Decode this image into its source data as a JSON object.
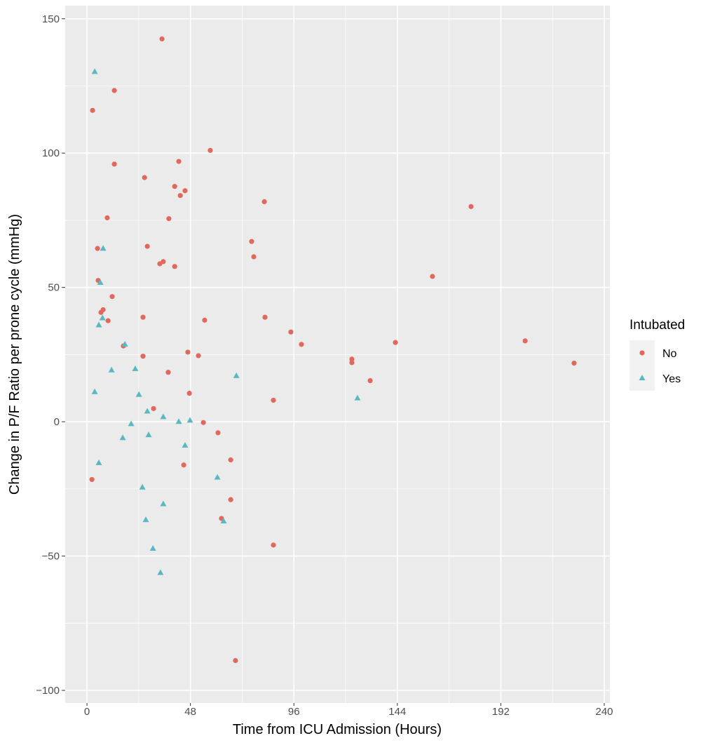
{
  "chart_data": {
    "type": "scatter",
    "title": "",
    "xlabel": "Time from ICU Admission (Hours)",
    "ylabel": "Change in P/F Ratio per prone cycle (mmHg)",
    "xlim": [
      -10.1,
      242.6
    ],
    "ylim": [
      -104.7,
      154.9
    ],
    "xticks": [
      0,
      48,
      96,
      144,
      192,
      240
    ],
    "yticks": [
      -100,
      -50,
      0,
      50,
      100,
      150
    ],
    "xminor": [
      24,
      72,
      120,
      168,
      216
    ],
    "yminor": [
      -75,
      -25,
      25,
      75,
      125
    ],
    "grid": true,
    "legend": {
      "title": "Intubated",
      "placement": "right"
    },
    "series": [
      {
        "name": "No",
        "color": "#E0695E",
        "marker": "circle",
        "points": [
          [
            34.8,
            142.5
          ],
          [
            12.7,
            123.3
          ],
          [
            2.6,
            115.9
          ],
          [
            12.7,
            95.9
          ],
          [
            57.2,
            101.0
          ],
          [
            42.6,
            96.9
          ],
          [
            26.7,
            90.9
          ],
          [
            40.7,
            87.6
          ],
          [
            45.5,
            86.0
          ],
          [
            43.3,
            84.2
          ],
          [
            82.3,
            81.9
          ],
          [
            9.4,
            75.9
          ],
          [
            38.0,
            75.6
          ],
          [
            178.2,
            80.1
          ],
          [
            76.4,
            67.1
          ],
          [
            4.9,
            64.5
          ],
          [
            28.0,
            65.3
          ],
          [
            77.4,
            61.4
          ],
          [
            35.4,
            59.6
          ],
          [
            33.8,
            58.8
          ],
          [
            40.7,
            57.8
          ],
          [
            160.3,
            54.1
          ],
          [
            5.2,
            52.6
          ],
          [
            11.7,
            46.6
          ],
          [
            7.5,
            41.7
          ],
          [
            6.5,
            40.7
          ],
          [
            9.8,
            37.6
          ],
          [
            26.0,
            38.9
          ],
          [
            54.6,
            37.8
          ],
          [
            82.6,
            38.9
          ],
          [
            94.6,
            33.4
          ],
          [
            99.5,
            28.8
          ],
          [
            143.1,
            29.5
          ],
          [
            16.9,
            28.2
          ],
          [
            203.3,
            30.1
          ],
          [
            226.0,
            21.8
          ],
          [
            46.8,
            25.9
          ],
          [
            51.7,
            24.6
          ],
          [
            26.0,
            24.4
          ],
          [
            122.9,
            23.3
          ],
          [
            122.9,
            22.0
          ],
          [
            37.7,
            18.4
          ],
          [
            131.4,
            15.3
          ],
          [
            47.5,
            10.6
          ],
          [
            86.5,
            8.0
          ],
          [
            30.9,
            4.9
          ],
          [
            54.0,
            -0.3
          ],
          [
            60.8,
            -4.1
          ],
          [
            44.9,
            -16.1
          ],
          [
            66.7,
            -14.2
          ],
          [
            2.3,
            -21.5
          ],
          [
            66.7,
            -29.0
          ],
          [
            62.4,
            -36.0
          ],
          [
            86.5,
            -45.9
          ],
          [
            68.9,
            -88.9
          ]
        ]
      },
      {
        "name": "Yes",
        "color": "#5BB8C2",
        "marker": "triangle",
        "points": [
          [
            3.6,
            130.3
          ],
          [
            7.5,
            64.5
          ],
          [
            6.2,
            51.8
          ],
          [
            7.2,
            38.6
          ],
          [
            5.5,
            36.0
          ],
          [
            17.6,
            28.8
          ],
          [
            11.4,
            19.2
          ],
          [
            22.4,
            19.7
          ],
          [
            69.3,
            17.1
          ],
          [
            3.6,
            11.1
          ],
          [
            24.1,
            10.1
          ],
          [
            125.5,
            8.8
          ],
          [
            28.0,
            3.9
          ],
          [
            35.4,
            1.8
          ],
          [
            47.8,
            0.5
          ],
          [
            42.6,
            0.0
          ],
          [
            20.5,
            -0.8
          ],
          [
            28.6,
            -4.9
          ],
          [
            16.6,
            -6.0
          ],
          [
            45.5,
            -8.8
          ],
          [
            5.5,
            -15.3
          ],
          [
            60.5,
            -20.7
          ],
          [
            25.7,
            -24.4
          ],
          [
            35.4,
            -30.6
          ],
          [
            27.3,
            -36.5
          ],
          [
            63.4,
            -37.0
          ],
          [
            30.6,
            -47.2
          ],
          [
            34.1,
            -56.2
          ]
        ]
      }
    ]
  }
}
